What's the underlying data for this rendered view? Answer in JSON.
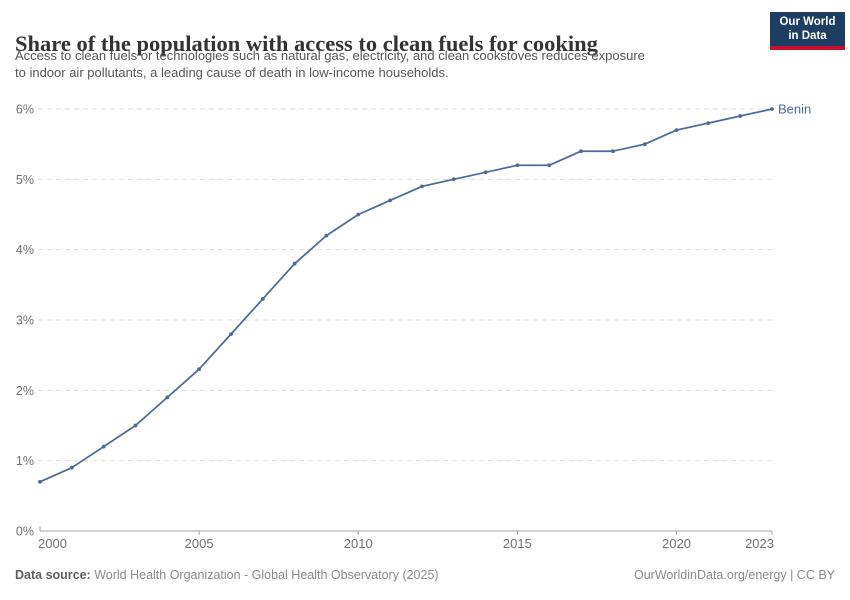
{
  "header": {
    "title": "Share of the population with access to clean fuels for cooking",
    "subtitle_lines": [
      "Access to clean fuels or technologies such as natural gas, electricity, and clean cookstoves reduces exposure",
      "to indoor air pollutants, a leading cause of death in low-income households."
    ],
    "logo": {
      "line1": "Our World",
      "line2": "in Data",
      "bg_color": "#1d3d63",
      "stripe_color": "#c8102e"
    }
  },
  "chart_data": {
    "type": "line",
    "title": "Share of the population with access to clean fuels for cooking",
    "xlabel": "",
    "ylabel": "",
    "xlim": [
      2000,
      2023
    ],
    "ylim": [
      0,
      6
    ],
    "grid": "horizontal-dashed",
    "legend_position": "end-of-line-label",
    "x_ticks": [
      2000,
      2005,
      2010,
      2015,
      2020,
      2023
    ],
    "y_ticks": [
      "0%",
      "1%",
      "2%",
      "3%",
      "4%",
      "5%",
      "6%"
    ],
    "series": [
      {
        "name": "Benin",
        "color": "#4c6a9c",
        "x": [
          2000,
          2001,
          2002,
          2003,
          2004,
          2005,
          2006,
          2007,
          2008,
          2009,
          2010,
          2011,
          2012,
          2013,
          2014,
          2015,
          2016,
          2017,
          2018,
          2019,
          2020,
          2021,
          2022,
          2023
        ],
        "values": [
          0.7,
          0.9,
          1.2,
          1.5,
          1.9,
          2.3,
          2.8,
          3.3,
          3.8,
          4.2,
          4.5,
          4.7,
          4.9,
          5.0,
          5.1,
          5.2,
          5.2,
          5.4,
          5.4,
          5.5,
          5.7,
          5.8,
          5.9,
          6.0
        ]
      }
    ],
    "colors": {
      "gridline": "#dedede",
      "axis_line": "#a5a5a5",
      "tick_label": "#707070"
    }
  },
  "footer": {
    "datasource_label": "Data source:",
    "datasource_text": " World Health Organization - Global Health Observatory (2025)",
    "right_text": "OurWorldinData.org/energy | CC BY"
  }
}
